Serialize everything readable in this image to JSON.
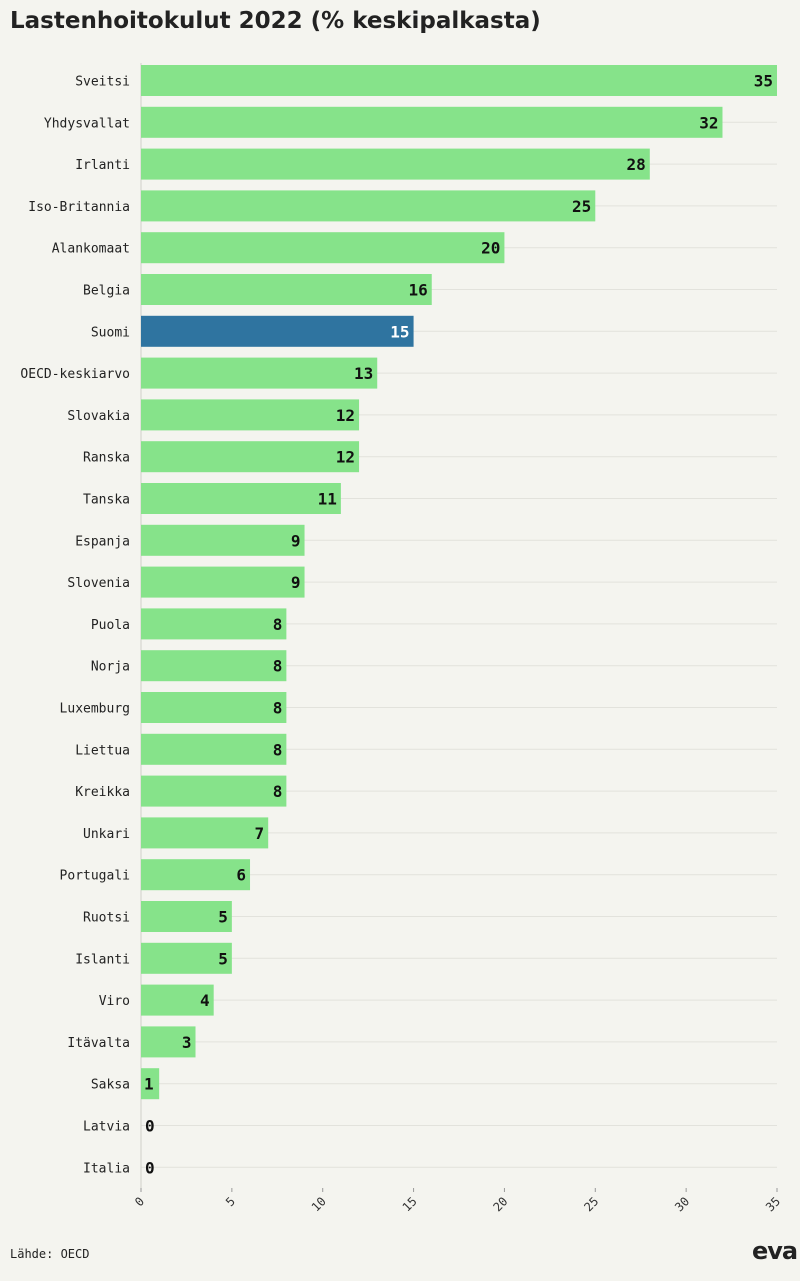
{
  "header": {
    "title": "Lastenhoitokulut 2022 (% keskipalkasta)"
  },
  "footer": {
    "source": "Lähde: OECD",
    "logo": "eva"
  },
  "colors": {
    "default_bar": "#86e38a",
    "highlight_bar": "#2f74a0",
    "background": "#f4f4ef"
  },
  "chart_data": {
    "type": "bar",
    "orientation": "horizontal",
    "title": "Lastenhoitokulut 2022 (% keskipalkasta)",
    "categories": [
      "Sveitsi",
      "Yhdysvallat",
      "Irlanti",
      "Iso-Britannia",
      "Alankomaat",
      "Belgia",
      "Suomi",
      "OECD-keskiarvo",
      "Slovakia",
      "Ranska",
      "Tanska",
      "Espanja",
      "Slovenia",
      "Puola",
      "Norja",
      "Luxemburg",
      "Liettua",
      "Kreikka",
      "Unkari",
      "Portugali",
      "Ruotsi",
      "Islanti",
      "Viro",
      "Itävalta",
      "Saksa",
      "Latvia",
      "Italia"
    ],
    "values": [
      35,
      32,
      28,
      25,
      20,
      16,
      15,
      13,
      12,
      12,
      11,
      9,
      9,
      8,
      8,
      8,
      8,
      8,
      7,
      6,
      5,
      5,
      4,
      3,
      1,
      0,
      0
    ],
    "highlight": "Suomi",
    "xlim": [
      0,
      35
    ],
    "xticks": [
      0,
      5,
      10,
      15,
      20,
      25,
      30,
      35
    ],
    "grid": true,
    "xlabel": "",
    "ylabel": ""
  }
}
